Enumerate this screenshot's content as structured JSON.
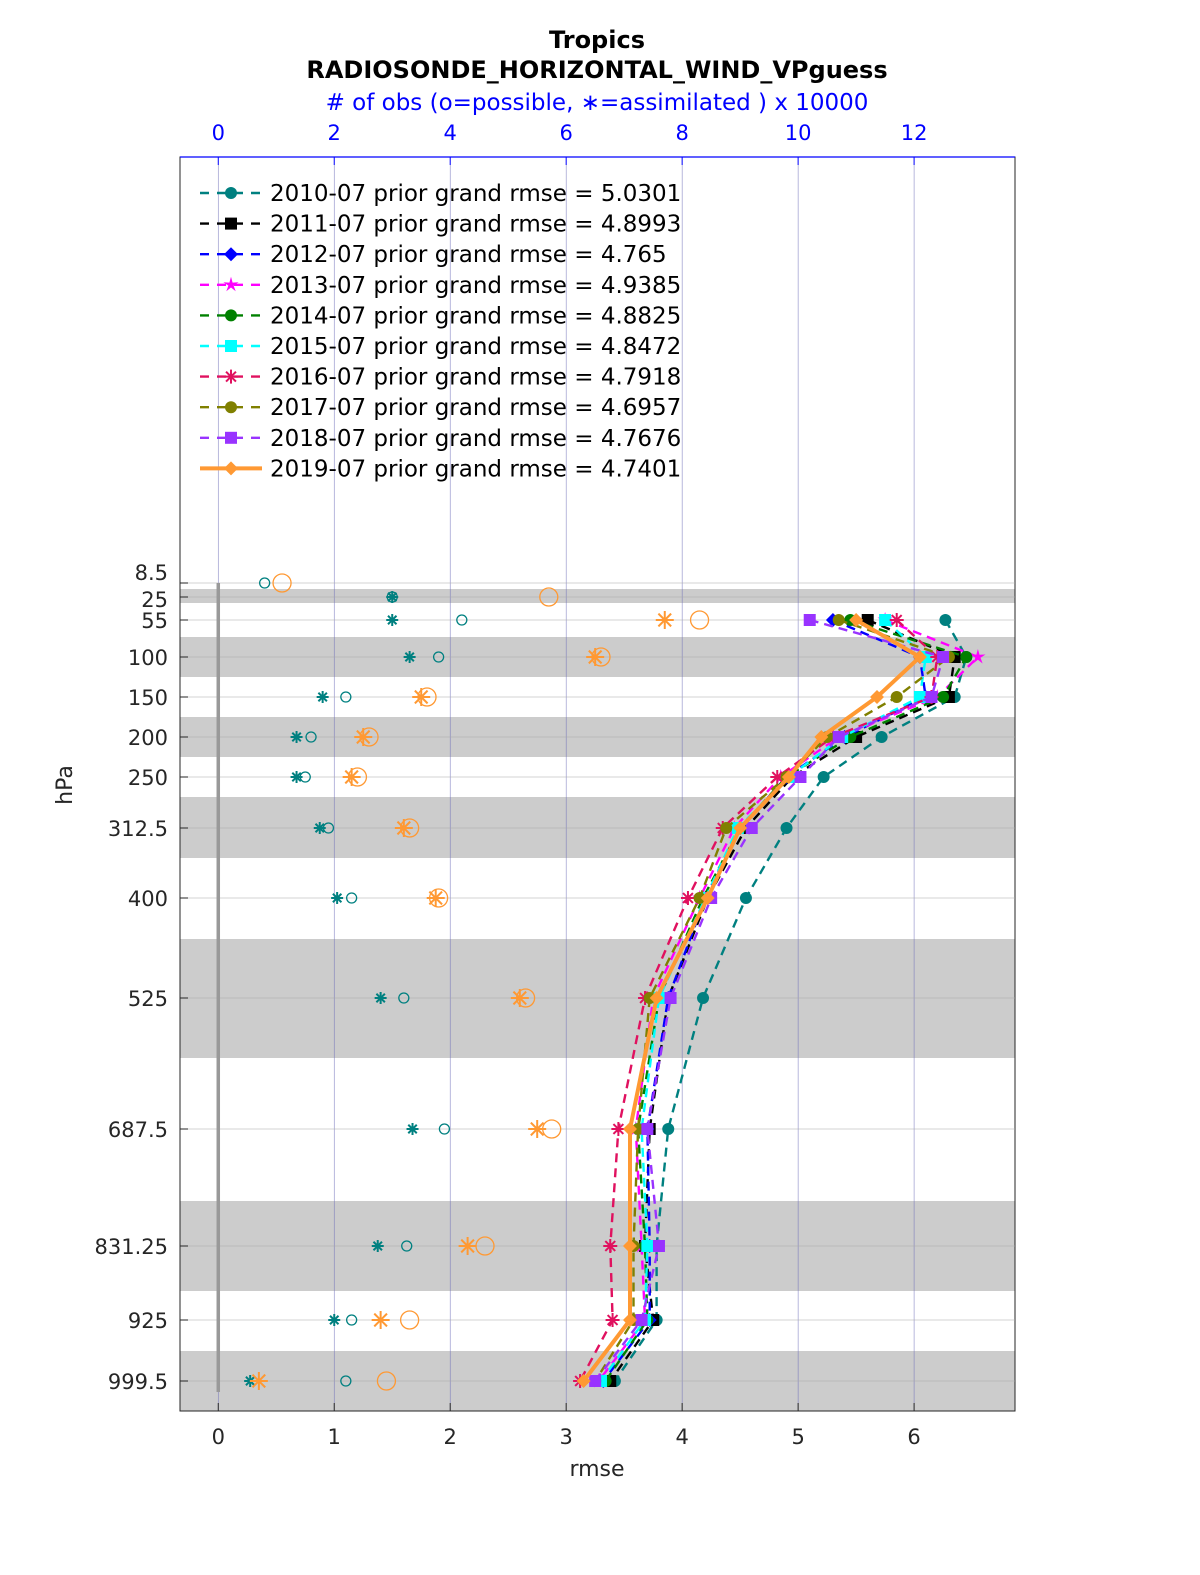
{
  "chart_data": {
    "type": "line",
    "title": "Tropics",
    "subtitle": "RADIOSONDE_HORIZONTAL_WIND_VPguess",
    "top_axis_label": "# of obs (o=possible, ∗=assimilated ) x 10000",
    "xlabel": "rmse",
    "ylabel": "hPa",
    "xlim": [
      -0.33,
      6.87
    ],
    "top_xlim": [
      -0.66,
      13.74
    ],
    "x_ticks": [
      "0",
      "1",
      "2",
      "3",
      "4",
      "5",
      "6"
    ],
    "top_ticks": [
      "0",
      "2",
      "4",
      "6",
      "8",
      "10",
      "12"
    ],
    "y_ticks": [
      "8.5",
      "25",
      "55",
      "100",
      "150",
      "200",
      "250",
      "312.5",
      "400",
      "525",
      "687.5",
      "831.25",
      "925",
      "999.5"
    ],
    "grid": true,
    "legend_location": "top-left",
    "levels": [
      55,
      100,
      150,
      200,
      250,
      312.5,
      400,
      525,
      687.5,
      831.25,
      925,
      999.5
    ],
    "series": [
      {
        "name": "2010-07 prior grand rmse = 5.0301",
        "color": "#008080",
        "marker": "circle",
        "style": "dashed",
        "values": [
          6.27,
          6.45,
          6.35,
          5.72,
          5.22,
          4.9,
          4.55,
          4.18,
          3.88,
          3.78,
          3.78,
          3.42
        ]
      },
      {
        "name": "2011-07 prior grand rmse = 4.8993",
        "color": "#000000",
        "marker": "square",
        "style": "dashed",
        "values": [
          5.6,
          6.35,
          6.3,
          5.5,
          4.95,
          4.55,
          4.22,
          3.88,
          3.72,
          3.68,
          3.75,
          3.38
        ]
      },
      {
        "name": "2012-07 prior grand rmse = 4.765",
        "color": "#0000ff",
        "marker": "diamond",
        "style": "dashed",
        "values": [
          5.3,
          6.05,
          6.1,
          5.4,
          4.9,
          4.5,
          4.2,
          3.88,
          3.7,
          3.72,
          3.72,
          3.32
        ]
      },
      {
        "name": "2013-07 prior grand rmse = 4.9385",
        "color": "#ff00ff",
        "marker": "star",
        "style": "dashed",
        "values": [
          5.75,
          6.55,
          6.2,
          5.35,
          4.85,
          4.45,
          4.15,
          3.75,
          3.6,
          3.65,
          3.68,
          3.28
        ]
      },
      {
        "name": "2014-07 prior grand rmse = 4.8825",
        "color": "#008000",
        "marker": "circle",
        "style": "dashed",
        "values": [
          5.45,
          6.45,
          6.25,
          5.45,
          4.9,
          4.5,
          4.18,
          3.8,
          3.62,
          3.68,
          3.7,
          3.34
        ]
      },
      {
        "name": "2015-07 prior grand rmse = 4.8472",
        "color": "#00ffff",
        "marker": "square",
        "style": "dashed",
        "values": [
          5.75,
          6.1,
          6.05,
          5.38,
          4.92,
          4.48,
          4.2,
          3.8,
          3.65,
          3.7,
          3.68,
          3.3
        ]
      },
      {
        "name": "2016-07 prior grand rmse = 4.7918",
        "color": "#e0115f",
        "marker": "asterisk",
        "style": "dashed",
        "values": [
          5.85,
          6.2,
          6.15,
          5.3,
          4.82,
          4.35,
          4.05,
          3.68,
          3.45,
          3.38,
          3.4,
          3.12
        ]
      },
      {
        "name": "2017-07 prior grand rmse = 4.6957",
        "color": "#808000",
        "marker": "circle",
        "style": "dashed",
        "values": [
          5.35,
          6.3,
          5.85,
          5.25,
          4.9,
          4.38,
          4.15,
          3.72,
          3.62,
          3.58,
          3.58,
          3.25
        ]
      },
      {
        "name": "2018-07 prior grand rmse = 4.7676",
        "color": "#9933ff",
        "marker": "square",
        "style": "dashed",
        "values": [
          5.1,
          6.25,
          6.15,
          5.35,
          5.02,
          4.6,
          4.25,
          3.9,
          3.7,
          3.8,
          3.65,
          3.25
        ]
      },
      {
        "name": "2019-07 prior grand rmse = 4.7401",
        "color": "#ff9933",
        "marker": "diamond",
        "style": "solid",
        "values": [
          5.5,
          6.05,
          5.68,
          5.2,
          4.92,
          4.5,
          4.22,
          3.78,
          3.55,
          3.55,
          3.55,
          3.15
        ]
      }
    ],
    "obs_counts": {
      "levels": [
        8.5,
        25,
        55,
        100,
        150,
        200,
        250,
        312.5,
        400,
        525,
        687.5,
        831.25,
        925,
        999.5
      ],
      "possible_2010": [
        0.8,
        3.0,
        4.2,
        3.8,
        2.2,
        1.6,
        1.5,
        1.9,
        2.3,
        3.2,
        3.9,
        3.25,
        2.3,
        2.2
      ],
      "assimilated_2010": [
        0.0,
        3.0,
        3.0,
        3.3,
        1.8,
        1.35,
        1.35,
        1.75,
        2.05,
        2.8,
        3.35,
        2.75,
        2.0,
        0.55
      ],
      "possible_2019": [
        1.1,
        5.7,
        8.3,
        6.6,
        3.6,
        2.6,
        2.4,
        3.3,
        3.8,
        5.3,
        5.75,
        4.6,
        3.3,
        2.9
      ],
      "assimilated_2019": [
        0.0,
        0.0,
        7.7,
        6.5,
        3.5,
        2.5,
        2.3,
        3.2,
        3.75,
        5.2,
        5.5,
        4.3,
        2.8,
        0.7
      ]
    }
  }
}
